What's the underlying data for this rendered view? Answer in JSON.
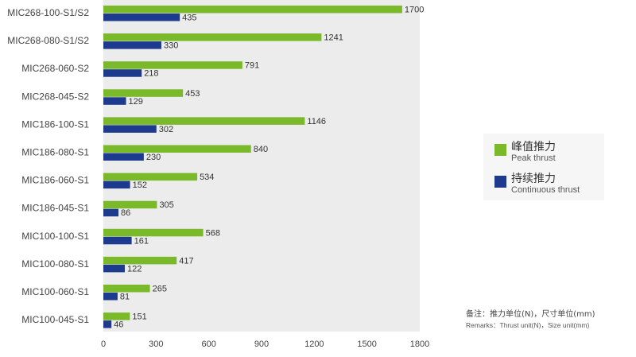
{
  "chart_data": {
    "type": "bar",
    "orientation": "horizontal",
    "categories": [
      "MIC268-100-S1/S2",
      "MIC268-080-S1/S2",
      "MIC268-060-S2",
      "MIC268-045-S2",
      "MIC186-100-S1",
      "MIC186-080-S1",
      "MIC186-060-S1",
      "MIC186-045-S1",
      "MIC100-100-S1",
      "MIC100-080-S1",
      "MIC100-060-S1",
      "MIC100-045-S1"
    ],
    "series": [
      {
        "name": "峰值推力 Peak thrust",
        "color": "#7ab929",
        "values": [
          1700,
          1241,
          791,
          453,
          1146,
          840,
          534,
          305,
          568,
          417,
          265,
          151
        ]
      },
      {
        "name": "持续推力 Continuous thrust",
        "color": "#1e3a8e",
        "values": [
          435,
          330,
          218,
          129,
          302,
          230,
          152,
          86,
          161,
          122,
          81,
          46
        ]
      }
    ],
    "xlim": [
      0,
      1800
    ],
    "xticks": [
      0,
      300,
      600,
      900,
      1200,
      1500,
      1800
    ],
    "plot_background": "#ececec",
    "grid": false,
    "legend_position": "right"
  },
  "legend": {
    "items": [
      {
        "zh": "峰值推力",
        "en": "Peak thrust",
        "color": "#7ab929"
      },
      {
        "zh": "持续推力",
        "en": "Continuous thrust",
        "color": "#1e3a8e"
      }
    ]
  },
  "remarks": {
    "zh": "备注：推力单位(N)，尺寸单位(mm)",
    "en": "Remarks：Thrust unit(N)，Size unit(mm)"
  }
}
